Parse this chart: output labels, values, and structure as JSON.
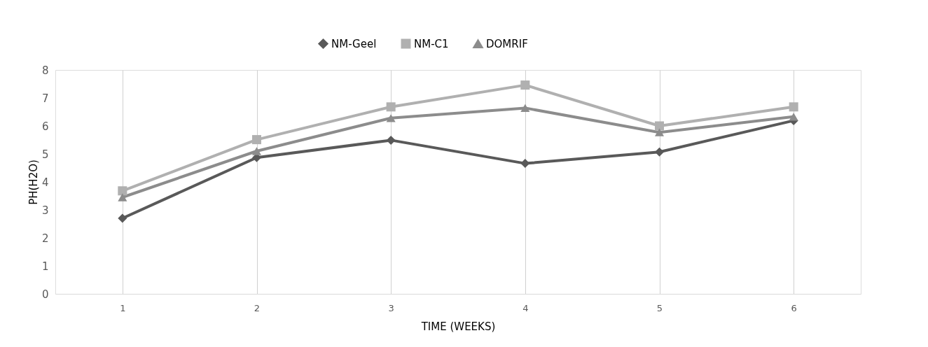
{
  "chart_data": {
    "type": "line",
    "categories": [
      "1",
      "2",
      "3",
      "4",
      "5",
      "6"
    ],
    "series": [
      {
        "name": "NM-Geel",
        "color": "#595959",
        "marker": "diamond",
        "values": [
          2.7,
          4.87,
          5.49,
          4.66,
          5.07,
          6.19
        ]
      },
      {
        "name": "NM-C1",
        "color": "#b0b0b0",
        "marker": "square",
        "values": [
          3.68,
          5.51,
          6.68,
          7.46,
          6.0,
          6.68
        ]
      },
      {
        "name": "DOMRIF",
        "color": "#8c8c8c",
        "marker": "triangle",
        "values": [
          3.45,
          5.1,
          6.28,
          6.64,
          5.77,
          6.33
        ]
      }
    ],
    "xlabel": "TIME (WEEKS)",
    "ylabel": "PH(H2O)",
    "ylim": [
      0,
      8
    ],
    "yticks": [
      0,
      1,
      2,
      3,
      4,
      5,
      6,
      7,
      8
    ],
    "grid": "x",
    "legend": "top",
    "line_style": "solid"
  }
}
